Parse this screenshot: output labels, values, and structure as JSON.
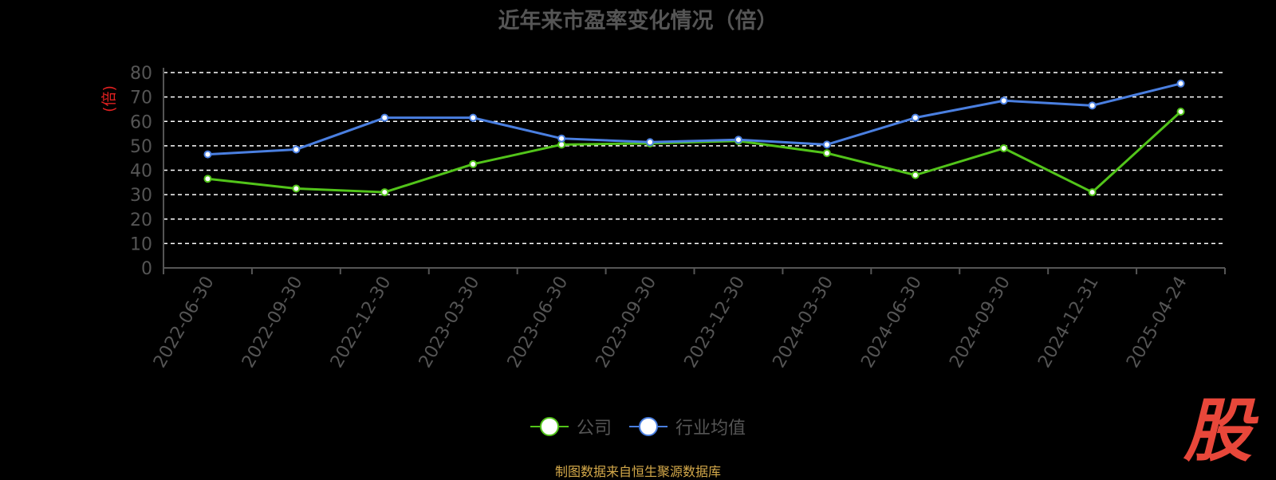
{
  "title": "近年来市盈率变化情况（倍）",
  "source_note": "制图数据来自恒生聚源数据库",
  "logo_text": "股",
  "chart_data": {
    "type": "line",
    "title": "近年来市盈率变化情况（倍）",
    "ylabel": "(倍)",
    "xlabel": "",
    "ylim": [
      0,
      80
    ],
    "yticks": [
      0,
      10,
      20,
      30,
      40,
      50,
      60,
      70,
      80
    ],
    "grid": true,
    "legend_position": "bottom-center",
    "categories": [
      "2022-06-30",
      "2022-09-30",
      "2022-12-30",
      "2023-03-30",
      "2023-06-30",
      "2023-09-30",
      "2023-12-30",
      "2024-03-30",
      "2024-06-30",
      "2024-09-30",
      "2024-12-31",
      "2025-04-24"
    ],
    "series": [
      {
        "name": "公司",
        "color": "#52c41a",
        "values": [
          36.5,
          32.5,
          31,
          42.5,
          50.5,
          51,
          52,
          47,
          38,
          49,
          31,
          64
        ]
      },
      {
        "name": "行业均值",
        "color": "#4a7fe0",
        "values": [
          46.5,
          48.5,
          61.5,
          61.5,
          53,
          51.5,
          52.5,
          50.5,
          61.5,
          68.5,
          66.5,
          75.5
        ]
      }
    ]
  },
  "colors": {
    "axis": "#555555",
    "grid": "#ffffff",
    "ylabel": "#e02020"
  }
}
